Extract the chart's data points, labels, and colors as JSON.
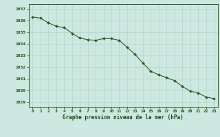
{
  "x": [
    0,
    1,
    2,
    3,
    4,
    5,
    6,
    7,
    8,
    9,
    10,
    11,
    12,
    13,
    14,
    15,
    16,
    17,
    18,
    19,
    20,
    21,
    22,
    23
  ],
  "y": [
    1036.3,
    1036.2,
    1035.8,
    1035.5,
    1035.4,
    1034.9,
    1034.5,
    1034.35,
    1034.3,
    1034.45,
    1034.45,
    1034.3,
    1033.7,
    1033.1,
    1032.35,
    1031.65,
    1031.35,
    1031.1,
    1030.85,
    1030.35,
    1029.95,
    1029.8,
    1029.45,
    1029.3
  ],
  "line_color": "#2d5a27",
  "marker": "D",
  "marker_size": 2.0,
  "bg_color": "#cde8e0",
  "grid_color": "#b0cfc4",
  "xlabel": "Graphe pression niveau de la mer (hPa)",
  "xlabel_color": "#1a4a14",
  "ylabel_ticks": [
    1029,
    1030,
    1031,
    1032,
    1033,
    1034,
    1035,
    1036,
    1037
  ],
  "xlim": [
    -0.5,
    23.5
  ],
  "ylim": [
    1028.6,
    1037.4
  ],
  "tick_color": "#1a4a14",
  "axis_color": "#2d5a27"
}
